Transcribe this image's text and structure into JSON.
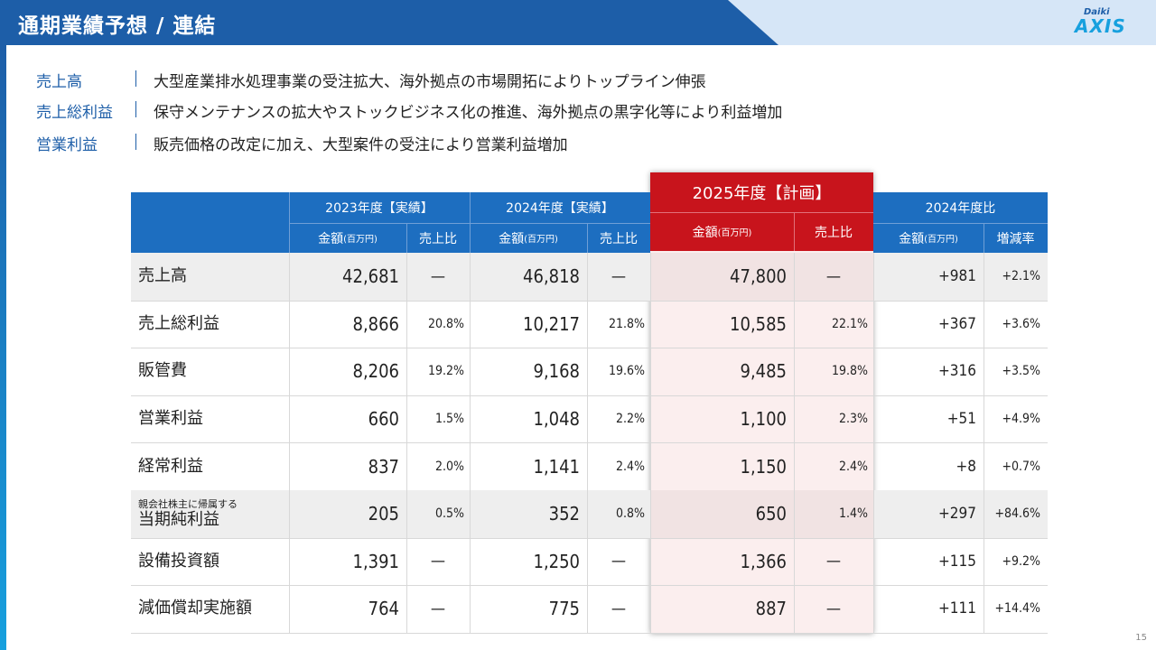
{
  "header": {
    "title": "通期業績予想 / 連結",
    "logo_top": "Daiki",
    "logo_main": "AXIS"
  },
  "page_number": "15",
  "summary": [
    {
      "label": "売上高",
      "text": "大型産業排水処理事業の受注拡大、海外拠点の市場開拓によりトップライン伸張"
    },
    {
      "label": "売上総利益",
      "text": "保守メンテナンスの拡大やストックビジネス化の推進、海外拠点の黒字化等により利益増加"
    },
    {
      "label": "営業利益",
      "text": "販売価格の改定に加え、大型案件の受注により営業利益増加"
    }
  ],
  "table": {
    "groups": [
      "2023年度【実績】",
      "2024年度【実績】",
      "2025年度【計画】",
      "2024年度比"
    ],
    "sub": {
      "amount": "金額",
      "amount_unit": "(百万円)",
      "ratio": "売上比",
      "change": "増減率"
    },
    "rows": [
      {
        "sub": "",
        "label": "売上高",
        "v23": "42,681",
        "r23": "—",
        "v24": "46,818",
        "r24": "—",
        "v25": "47,800",
        "r25": "—",
        "d": "+981",
        "dr": "+2.1%"
      },
      {
        "sub": "",
        "label": "売上総利益",
        "v23": "8,866",
        "r23": "20.8%",
        "v24": "10,217",
        "r24": "21.8%",
        "v25": "10,585",
        "r25": "22.1%",
        "d": "+367",
        "dr": "+3.6%"
      },
      {
        "sub": "",
        "label": "販管費",
        "v23": "8,206",
        "r23": "19.2%",
        "v24": "9,168",
        "r24": "19.6%",
        "v25": "9,485",
        "r25": "19.8%",
        "d": "+316",
        "dr": "+3.5%"
      },
      {
        "sub": "",
        "label": "営業利益",
        "v23": "660",
        "r23": "1.5%",
        "v24": "1,048",
        "r24": "2.2%",
        "v25": "1,100",
        "r25": "2.3%",
        "d": "+51",
        "dr": "+4.9%"
      },
      {
        "sub": "",
        "label": "経常利益",
        "v23": "837",
        "r23": "2.0%",
        "v24": "1,141",
        "r24": "2.4%",
        "v25": "1,150",
        "r25": "2.4%",
        "d": "+8",
        "dr": "+0.7%"
      },
      {
        "sub": "親会社株主に帰属する",
        "label": "当期純利益",
        "v23": "205",
        "r23": "0.5%",
        "v24": "352",
        "r24": "0.8%",
        "v25": "650",
        "r25": "1.4%",
        "d": "+297",
        "dr": "+84.6%"
      },
      {
        "sub": "",
        "label": "設備投資額",
        "v23": "1,391",
        "r23": "—",
        "v24": "1,250",
        "r24": "—",
        "v25": "1,366",
        "r25": "—",
        "d": "+115",
        "dr": "+9.2%"
      },
      {
        "sub": "",
        "label": "減価償却実施額",
        "v23": "764",
        "r23": "—",
        "v24": "775",
        "r24": "—",
        "v25": "887",
        "r25": "—",
        "d": "+111",
        "dr": "+14.4%"
      }
    ]
  }
}
